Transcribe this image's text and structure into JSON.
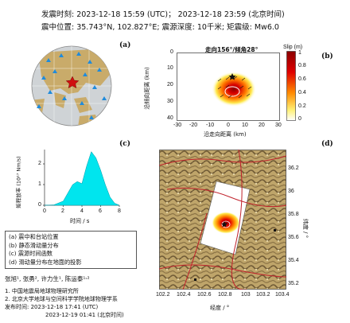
{
  "header": {
    "line1": "发震时刻: 2023-12-18 15:59 (UTC)；  2023-12-18  23:59 (北京时间)",
    "line2": "震中位置: 35.743°N, 102.827°E;  震源深度: 10千米; 矩震级: Mw6.0"
  },
  "panels": {
    "a": "(a)",
    "b": "(b)",
    "c": "(c)",
    "d": "(d)"
  },
  "panel_b": {
    "title": "走向156°/倾角28°",
    "colorbar_label": "Slip (m)",
    "colorbar_ticks": [
      "1",
      "0.8",
      "0.6",
      "0.4",
      "0.2",
      "0"
    ],
    "xlabel": "沿走向距离 (km)",
    "ylabel": "沿倾向距离 (km)",
    "xticks": [
      "-30",
      "-20",
      "-10",
      "0",
      "10",
      "20",
      "30"
    ],
    "yticks": [
      "0",
      "10",
      "20",
      "30",
      "40"
    ]
  },
  "panel_c": {
    "ylabel": "矩释放率 (10¹⁷ Nm/s)",
    "xlabel": "时间 / s",
    "yticks": [
      "0",
      "1",
      "2"
    ],
    "xticks": [
      "0",
      "2",
      "4",
      "6",
      "8"
    ]
  },
  "panel_d": {
    "xlabel": "经度 / °",
    "ylabel": "纬度 / °",
    "xticks": [
      "102.2",
      "102.4",
      "102.6",
      "102.8",
      "103",
      "103.2",
      "103.4"
    ],
    "yticks": [
      "36.2",
      "36",
      "35.8",
      "35.6",
      "35.4",
      "35.2"
    ]
  },
  "legend": [
    "(a) 震中和台站位置",
    "(b) 静态滑动量分布",
    "(c) 震源时间函数",
    "(d) 滑动量分布在地面的投影"
  ],
  "authors": {
    "names": "张旭¹, 张勇², 许力生¹, 陈运泰¹˒²",
    "aff1": "1. 中国地震局地球物理研究所",
    "aff2": "2. 北京大学地球与空间科学学院地球物理学系",
    "release1": "发布时间:  2023-12-18  17:41 (UTC)",
    "release2": "2023-12-19  01:41 (北京时间)"
  },
  "chart_data": {
    "type": "area",
    "x": [
      0,
      1,
      2,
      2.5,
      3,
      3.5,
      4,
      4.5,
      5,
      5.5,
      6,
      6.5,
      7,
      7.5,
      8
    ],
    "values": [
      0,
      0.02,
      0.2,
      0.6,
      1.0,
      1.15,
      1.05,
      1.9,
      2.6,
      2.3,
      1.7,
      1.0,
      0.4,
      0.1,
      0
    ],
    "ylabel": "矩释放率 (10¹⁷ Nm/s)",
    "xlabel": "时间 / s",
    "xlim": [
      0,
      8
    ],
    "ylim": [
      0,
      2.7
    ],
    "color": "#00e5ee"
  },
  "colors": {
    "slip_high": "#c00000",
    "slip_mid": "#ff6a00",
    "slip_low": "#ffe94d",
    "fault_line": "#c0202a",
    "land": "#c9ab6a",
    "ocean": "#cfd3d6",
    "station": "#1f8bdc",
    "epicenter": "#d01010"
  }
}
